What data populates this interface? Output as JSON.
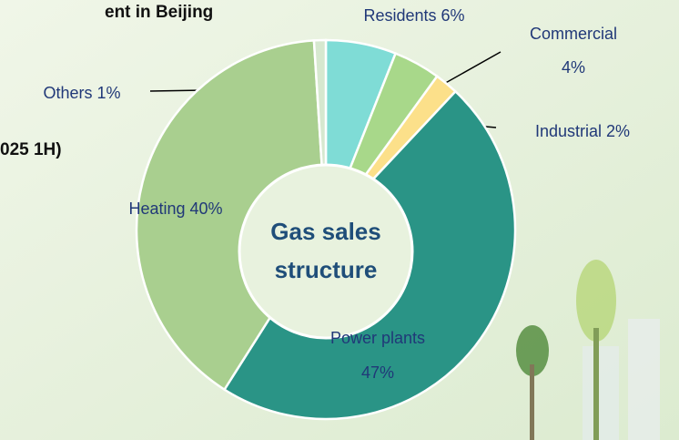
{
  "chart_data": {
    "type": "donut",
    "title_fragments": [
      "ent in Beijing",
      "025 1H)"
    ],
    "center_label": [
      "Gas sales",
      "structure"
    ],
    "categories": [
      "Residents",
      "Commercial",
      "Industrial",
      "Power plants",
      "Heating",
      "Others"
    ],
    "values": [
      6,
      4,
      2,
      47,
      40,
      1
    ],
    "value_labels": [
      "6%",
      "4%",
      "2%",
      "47%",
      "40%",
      "1%"
    ],
    "colors": [
      "#7fdcd6",
      "#a8d88a",
      "#fce08a",
      "#2a9486",
      "#a9cf8f",
      "#d6e8cf"
    ]
  }
}
